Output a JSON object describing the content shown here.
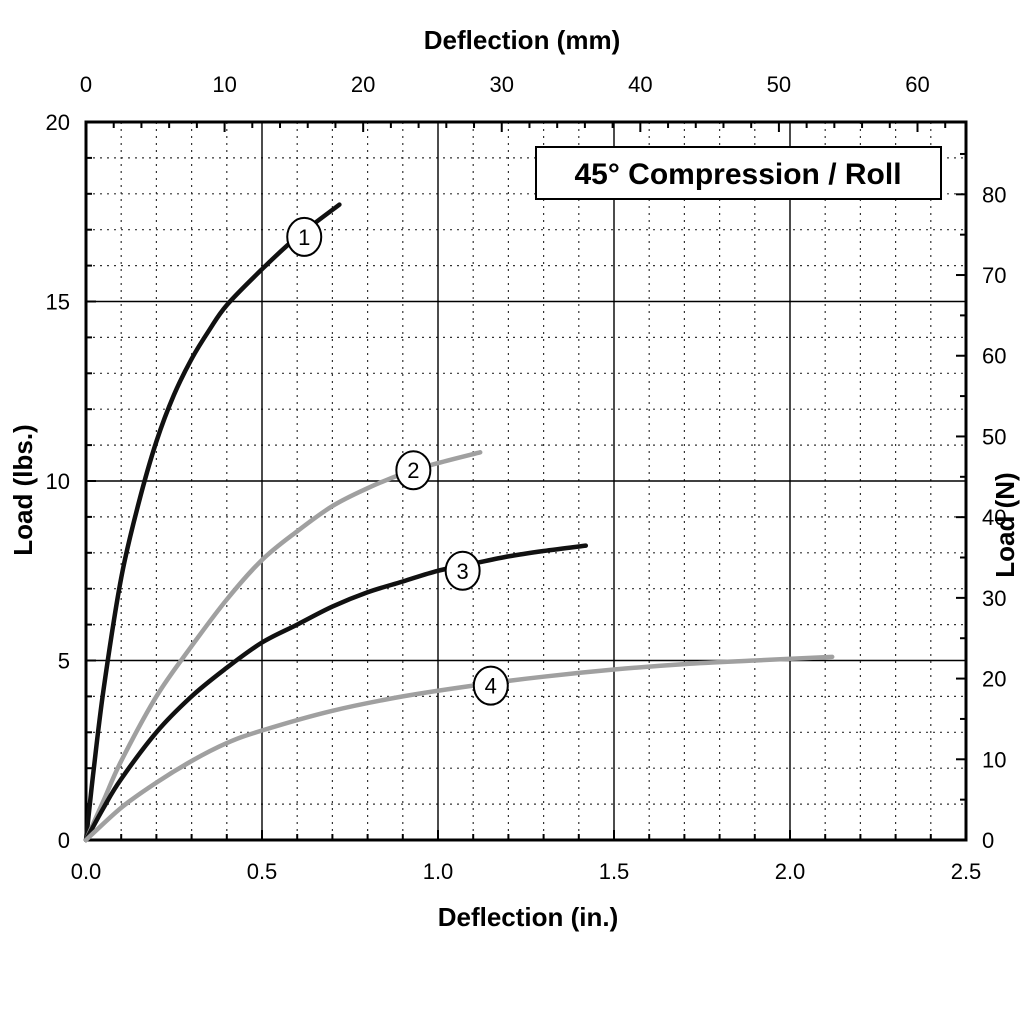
{
  "chart_data": {
    "type": "line",
    "title": "45° Compression / Roll",
    "xlabel": "Deflection (in.)",
    "ylabel": "Load (lbs.)",
    "x2label": "Deflection (mm)",
    "y2label": "Load (N)",
    "xlim": [
      0,
      2.5
    ],
    "ylim": [
      0,
      20
    ],
    "x2lim": [
      0,
      63.5
    ],
    "y2lim": [
      0,
      88.96
    ],
    "xticks": [
      "0.0",
      "0.5",
      "1.0",
      "1.5",
      "2.0",
      "2.5"
    ],
    "yticks": [
      "0",
      "5",
      "10",
      "15",
      "20"
    ],
    "x2ticks": [
      "0",
      "10",
      "20",
      "30",
      "40",
      "50",
      "60"
    ],
    "y2ticks": [
      "0",
      "10",
      "20",
      "30",
      "40",
      "50",
      "60",
      "70",
      "80"
    ],
    "grid": true,
    "series": [
      {
        "name": "1",
        "color": "#111111",
        "x": [
          0,
          0.02,
          0.05,
          0.1,
          0.15,
          0.2,
          0.25,
          0.3,
          0.35,
          0.4,
          0.5,
          0.6,
          0.72
        ],
        "y": [
          0,
          1.8,
          4.2,
          7.3,
          9.4,
          11.1,
          12.4,
          13.4,
          14.2,
          14.9,
          15.9,
          16.8,
          17.7
        ],
        "label_at": [
          0.62,
          16.8
        ]
      },
      {
        "name": "2",
        "color": "#a0a0a0",
        "x": [
          0,
          0.05,
          0.1,
          0.2,
          0.3,
          0.4,
          0.5,
          0.6,
          0.7,
          0.8,
          0.9,
          1.0,
          1.12
        ],
        "y": [
          0,
          1.1,
          2.2,
          4.0,
          5.4,
          6.7,
          7.8,
          8.6,
          9.3,
          9.8,
          10.2,
          10.5,
          10.8
        ],
        "label_at": [
          0.93,
          10.3
        ]
      },
      {
        "name": "3",
        "color": "#111111",
        "x": [
          0,
          0.05,
          0.1,
          0.2,
          0.3,
          0.4,
          0.5,
          0.6,
          0.7,
          0.8,
          0.9,
          1.0,
          1.1,
          1.2,
          1.3,
          1.42
        ],
        "y": [
          0,
          0.9,
          1.7,
          3.0,
          4.0,
          4.8,
          5.5,
          6.0,
          6.5,
          6.9,
          7.2,
          7.5,
          7.7,
          7.9,
          8.05,
          8.2
        ],
        "label_at": [
          1.07,
          7.5
        ]
      },
      {
        "name": "4",
        "color": "#a0a0a0",
        "x": [
          0,
          0.1,
          0.2,
          0.3,
          0.4,
          0.5,
          0.7,
          0.9,
          1.1,
          1.3,
          1.5,
          1.7,
          1.9,
          2.12
        ],
        "y": [
          0,
          0.9,
          1.6,
          2.2,
          2.7,
          3.05,
          3.6,
          4.0,
          4.3,
          4.55,
          4.75,
          4.9,
          5.0,
          5.1
        ],
        "label_at": [
          1.15,
          4.3
        ]
      }
    ]
  }
}
